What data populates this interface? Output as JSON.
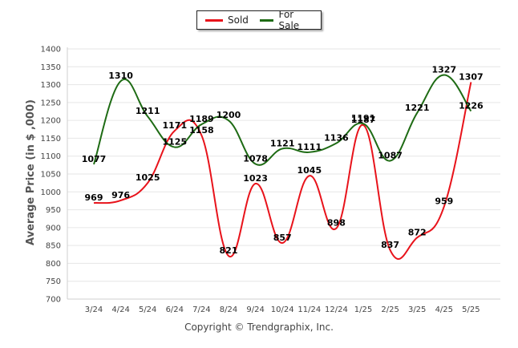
{
  "chart_data": {
    "type": "line",
    "title": "",
    "xlabel": "",
    "ylabel": "Average Price (in $ ,000)",
    "ylim": [
      700,
      1400
    ],
    "yticks": [
      700,
      750,
      800,
      850,
      900,
      950,
      1000,
      1050,
      1100,
      1150,
      1200,
      1250,
      1300,
      1350,
      1400
    ],
    "categories": [
      "3/24",
      "4/24",
      "5/24",
      "6/24",
      "7/24",
      "8/24",
      "9/24",
      "10/24",
      "11/24",
      "12/24",
      "1/25",
      "2/25",
      "3/25",
      "4/25",
      "5/25"
    ],
    "grid": true,
    "legend_position": "top-center",
    "series": [
      {
        "name": "Sold",
        "color": "#e8131b",
        "values": [
          969,
          976,
          1025,
          1171,
          1158,
          821,
          1023,
          857,
          1045,
          898,
          1187,
          837,
          872,
          959,
          1307
        ]
      },
      {
        "name": "For Sale",
        "color": "#1e6b14",
        "values": [
          1077,
          1310,
          1211,
          1125,
          1189,
          1200,
          1078,
          1121,
          1111,
          1136,
          1191,
          1087,
          1221,
          1327,
          1226
        ]
      }
    ],
    "footer": "Copyright © Trendgraphix, Inc."
  }
}
